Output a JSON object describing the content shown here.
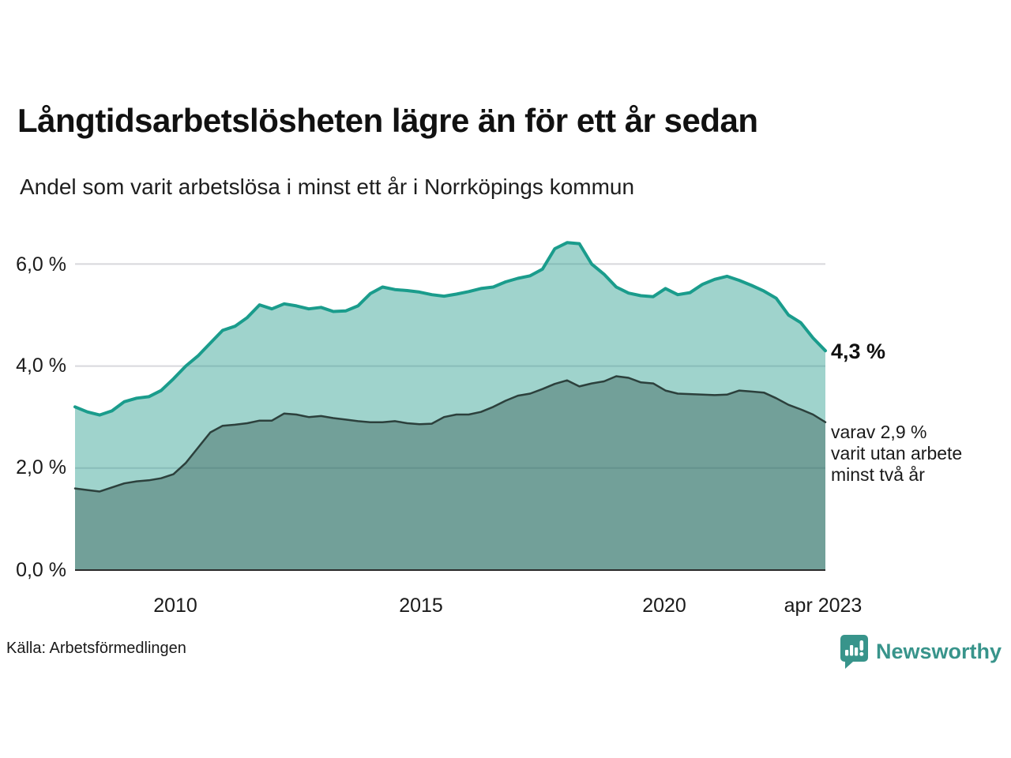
{
  "header": {
    "title": "Långtidsarbetslösheten lägre än för ett år sedan",
    "subtitle": "Andel som varit arbetslösa i minst ett år i Norrköpings kommun"
  },
  "chart_data": {
    "type": "area",
    "title": "Långtidsarbetslösheten lägre än för ett år sedan",
    "subtitle": "Andel som varit arbetslösa i minst ett år i Norrköpings kommun",
    "x_unit": "quarter",
    "x_start_year": 2008,
    "x_end_label": "apr 2023",
    "ylim": [
      0,
      6.55
    ],
    "grid": "horizontal",
    "legend": "none",
    "y_ticks": [
      {
        "label": "6,0 %",
        "value": 6
      },
      {
        "label": "4,0 %",
        "value": 4
      },
      {
        "label": "2,0 %",
        "value": 2
      },
      {
        "label": "0,0 %",
        "value": 0
      }
    ],
    "x_ticks": [
      {
        "label": "2010"
      },
      {
        "label": "2015"
      },
      {
        "label": "2020"
      },
      {
        "label": "apr 2023"
      }
    ],
    "series": [
      {
        "name": "Andel arbetslösa minst ett år",
        "line_color": "#1a9c8c",
        "fill_color": "rgba(42,157,143,0.45)",
        "line_width": 4,
        "end_value_label": "4,3 %",
        "values": [
          3.2,
          3.1,
          3.04,
          3.12,
          3.3,
          3.37,
          3.4,
          3.52,
          3.75,
          4.0,
          4.2,
          4.45,
          4.7,
          4.78,
          4.95,
          5.2,
          5.12,
          5.22,
          5.18,
          5.12,
          5.15,
          5.07,
          5.08,
          5.18,
          5.42,
          5.55,
          5.5,
          5.48,
          5.45,
          5.4,
          5.37,
          5.41,
          5.46,
          5.52,
          5.55,
          5.65,
          5.72,
          5.77,
          5.9,
          6.3,
          6.42,
          6.4,
          6.0,
          5.8,
          5.55,
          5.43,
          5.38,
          5.36,
          5.52,
          5.4,
          5.44,
          5.6,
          5.7,
          5.76,
          5.68,
          5.58,
          5.47,
          5.33,
          5.0,
          4.85,
          4.55,
          4.3
        ]
      },
      {
        "name": "varav arbetslösa minst två år",
        "line_color": "#2c403c",
        "fill_color": "rgba(43,77,71,0.38)",
        "line_width": 2.5,
        "end_value_label": "2,9 %",
        "values": [
          1.6,
          1.57,
          1.54,
          1.62,
          1.7,
          1.74,
          1.76,
          1.8,
          1.88,
          2.1,
          2.4,
          2.7,
          2.83,
          2.85,
          2.88,
          2.93,
          2.93,
          3.07,
          3.05,
          3.0,
          3.02,
          2.98,
          2.95,
          2.92,
          2.9,
          2.9,
          2.92,
          2.88,
          2.86,
          2.87,
          3.0,
          3.05,
          3.05,
          3.1,
          3.2,
          3.32,
          3.42,
          3.46,
          3.55,
          3.65,
          3.72,
          3.6,
          3.66,
          3.7,
          3.8,
          3.77,
          3.68,
          3.66,
          3.52,
          3.46,
          3.45,
          3.44,
          3.43,
          3.44,
          3.52,
          3.5,
          3.48,
          3.37,
          3.24,
          3.15,
          3.05,
          2.9
        ]
      }
    ],
    "colors": {
      "gridline": "#d8d8dc",
      "baseline": "#2b2b2b",
      "accent_teal": "#1a9c8c",
      "brand_teal": "#38948b"
    }
  },
  "annotations": {
    "end_value_top": "4,3 %",
    "end_note_lines": [
      "varav 2,9 %",
      "varit utan arbete",
      "minst två år"
    ]
  },
  "footer": {
    "source": "Källa: Arbetsförmedlingen",
    "brand": "Newsworthy"
  }
}
